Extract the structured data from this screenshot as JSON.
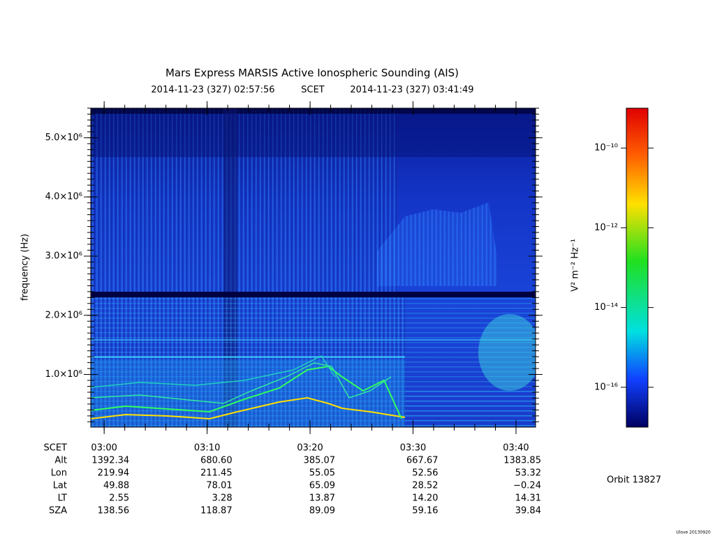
{
  "chart_data": {
    "type": "spectrogram",
    "title": "Mars Express MARSIS Active Ionospheric Sounding (AIS)",
    "start_time": "2014-11-23 (327) 02:57:56",
    "time_system": "SCET",
    "end_time": "2014-11-23 (327) 03:41:49",
    "y_label": "frequency (Hz)",
    "xlim": [
      178.7,
      221.9
    ],
    "xticks": [
      {
        "value": 180,
        "label": "03:00"
      },
      {
        "value": 190,
        "label": "03:10"
      },
      {
        "value": 200,
        "label": "03:20"
      },
      {
        "value": 210,
        "label": "03:30"
      },
      {
        "value": 220,
        "label": "03:40"
      }
    ],
    "ylim": [
      110000,
      5500000
    ],
    "yticks": [
      {
        "value": 1000000,
        "label": "1.0×10⁶"
      },
      {
        "value": 2000000,
        "label": "2.0×10⁶"
      },
      {
        "value": 3000000,
        "label": "3.0×10⁶"
      },
      {
        "value": 4000000,
        "label": "4.0×10⁶"
      },
      {
        "value": 5000000,
        "label": "5.0×10⁶"
      }
    ],
    "colorbar": {
      "label": "V² m⁻² Hz⁻¹",
      "log": true,
      "clim": [
        1e-17,
        1e-09
      ],
      "ticks": [
        {
          "value": 1e-10,
          "label": "10⁻¹⁰"
        },
        {
          "value": 1e-12,
          "label": "10⁻¹²"
        },
        {
          "value": 1e-14,
          "label": "10⁻¹⁴"
        },
        {
          "value": 1e-16,
          "label": "10⁻¹⁶"
        }
      ]
    }
  },
  "ephemeris": {
    "time_label": "SCET",
    "rows": [
      {
        "label": "Alt",
        "values": [
          "1392.34",
          "680.60",
          "385.07",
          "667.67",
          "1383.85"
        ]
      },
      {
        "label": "Lon",
        "values": [
          "219.94",
          "211.45",
          "55.05",
          "52.56",
          "53.32"
        ]
      },
      {
        "label": "Lat",
        "values": [
          "49.88",
          "78.01",
          "65.09",
          "28.52",
          "−0.24"
        ]
      },
      {
        "label": "LT",
        "values": [
          "2.55",
          "3.28",
          "13.87",
          "14.20",
          "14.31"
        ]
      },
      {
        "label": "SZA",
        "values": [
          "138.56",
          "118.87",
          "89.09",
          "59.16",
          "39.84"
        ]
      }
    ]
  },
  "orbit": "Orbit 13827",
  "footer": "Ulove 20130920"
}
